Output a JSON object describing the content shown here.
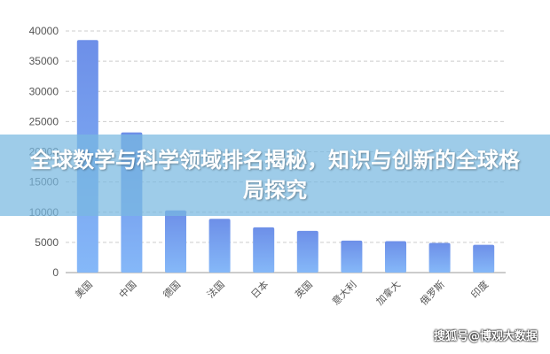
{
  "banner": {
    "title": "全球数学与科学领域排名揭秘，知识与创新的全球格局探究"
  },
  "watermark": "搜狐号@博观大数据",
  "chart_data": {
    "type": "bar",
    "categories": [
      "美国",
      "中国",
      "德国",
      "法国",
      "日本",
      "英国",
      "意大利",
      "加拿大",
      "俄罗斯",
      "印度"
    ],
    "values": [
      38500,
      23200,
      10300,
      8900,
      7500,
      6900,
      5300,
      5200,
      4900,
      4600
    ],
    "ylim": [
      0,
      40000
    ],
    "yticks": [
      "0",
      "5000",
      "10000",
      "15000",
      "20000",
      "25000",
      "30000",
      "35000",
      "40000"
    ],
    "grid": true,
    "legend": "none",
    "colors": {
      "bar_top": "#6d8fe8",
      "bar_bottom": "#85b8f8",
      "grid": "#cccccc",
      "axis_text": "#555555"
    }
  }
}
